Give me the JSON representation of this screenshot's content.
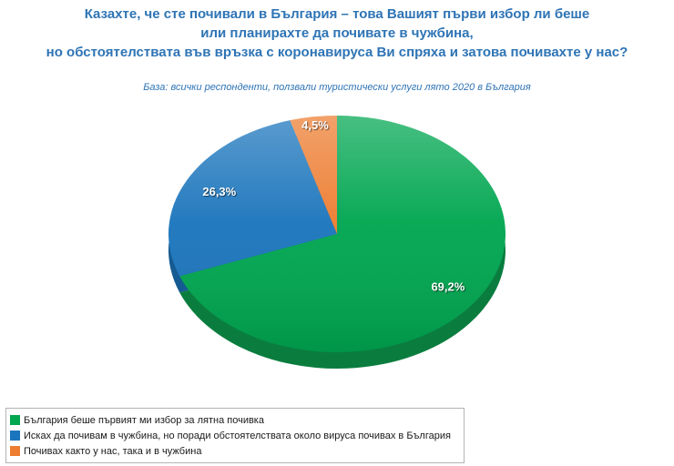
{
  "title": {
    "line1": "Казахте, че сте почивали в България – това Вашият първи избор ли беше",
    "line2": "или планирахте да почивате в чужбина,",
    "line3": "но обстоятелствата във връзка с коронавируса Ви спряха и затова почивахте у нас?"
  },
  "subtitle": "База: всички респонденти, ползвали туристически услуги лято 2020 в България",
  "accent_color": "#2e74b5",
  "chart_data": {
    "type": "pie",
    "title": "Казахте, че сте почивали в България – това Вашият първи избор ли беше или планирахте да почивате в чужбина, но обстоятелствата във връзка с коронавируса Ви спряха и затова почивахте у нас?",
    "subtitle": "База: всички респонденти, ползвали туристически услуги лято 2020 в България",
    "categories": [
      "България беше първият ми избор за лятна почивка",
      "Исках да почивам в чужбина, но поради обстоятелствата около вируса почивах в България",
      "Почивах както у нас, така и в чужбина"
    ],
    "values": [
      69.2,
      26.3,
      4.5
    ],
    "value_labels": [
      "69,2%",
      "26,3%",
      "4,5%"
    ],
    "colors": [
      "#00a650",
      "#1b75bc",
      "#ed7d31"
    ],
    "colors_dark": [
      "#0a7d3e",
      "#155a92",
      "#b85c20"
    ],
    "label_color": "#ffffff",
    "start_angle_deg": -90,
    "direction": "clockwise",
    "effect": "3d",
    "legend_position": "bottom"
  }
}
